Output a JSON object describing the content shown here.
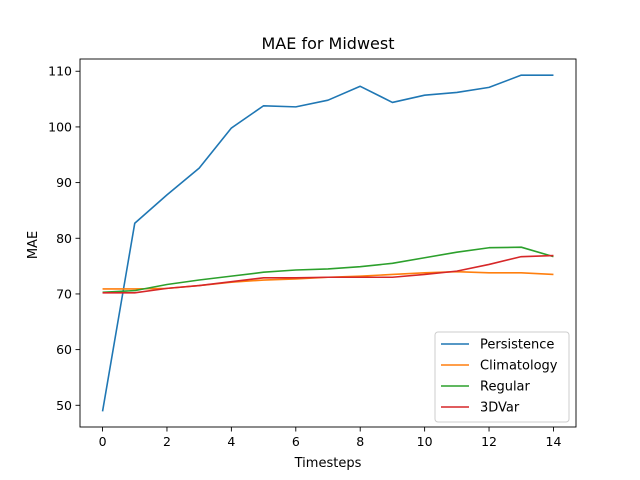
{
  "chart_data": {
    "type": "line",
    "title": "MAE for Midwest",
    "xlabel": "Timesteps",
    "ylabel": "MAE",
    "xlim": [
      -0.7,
      14.7
    ],
    "ylim": [
      46.1,
      112.2
    ],
    "xticks": [
      0,
      2,
      4,
      6,
      8,
      10,
      12,
      14
    ],
    "yticks": [
      50,
      60,
      70,
      80,
      90,
      100,
      110
    ],
    "grid": false,
    "legend_position": "lower-right",
    "x": [
      0,
      1,
      2,
      3,
      4,
      5,
      6,
      7,
      8,
      9,
      10,
      11,
      12,
      13,
      14
    ],
    "series": [
      {
        "name": "Persistence",
        "color": "#1f77b4",
        "values": [
          48.9,
          82.7,
          87.8,
          92.6,
          99.8,
          103.8,
          103.6,
          104.8,
          107.3,
          104.4,
          105.7,
          106.2,
          107.1,
          109.3,
          109.3
        ]
      },
      {
        "name": "Climatology",
        "color": "#ff7f0e",
        "values": [
          70.9,
          70.9,
          71.0,
          71.5,
          72.1,
          72.5,
          72.7,
          73.0,
          73.2,
          73.5,
          73.8,
          74.0,
          73.8,
          73.8,
          73.5
        ]
      },
      {
        "name": "Regular",
        "color": "#2ca02c",
        "values": [
          70.3,
          70.6,
          71.7,
          72.5,
          73.2,
          73.9,
          74.3,
          74.5,
          74.9,
          75.5,
          76.5,
          77.5,
          78.3,
          78.4,
          76.7
        ]
      },
      {
        "name": "3DVar",
        "color": "#d62728",
        "values": [
          70.2,
          70.2,
          71.0,
          71.5,
          72.2,
          72.9,
          72.9,
          73.0,
          73.0,
          73.0,
          73.5,
          74.1,
          75.3,
          76.7,
          76.9
        ]
      }
    ]
  }
}
